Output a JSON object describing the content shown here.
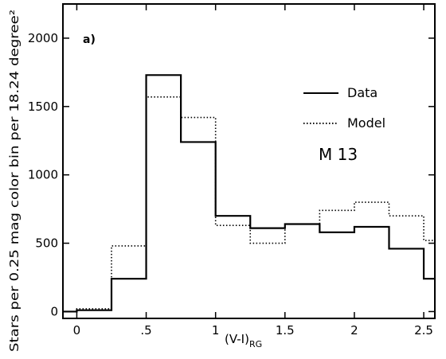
{
  "chart_data": {
    "type": "histogram",
    "panel_label": "a)",
    "xlabel": "(V-I)",
    "xlabel_subscript": "RG",
    "ylabel": "Stars per 0.25 mag color bin per 18.24 degree²",
    "xlim": [
      -0.1,
      2.58
    ],
    "ylim": [
      -50,
      2250
    ],
    "xticks": [
      0,
      0.5,
      1,
      1.5,
      2,
      2.5
    ],
    "xtick_labels": [
      "0",
      ".5",
      "1",
      "1.5",
      "2",
      "2.5"
    ],
    "yticks": [
      0,
      500,
      1000,
      1500,
      2000
    ],
    "ytick_labels": [
      "0",
      "500",
      "1000",
      "1500",
      "2000"
    ],
    "bin_edges": [
      -0.1,
      0,
      0.25,
      0.5,
      0.75,
      1,
      1.25,
      1.5,
      1.75,
      2,
      2.25,
      2.5,
      2.58
    ],
    "series": [
      {
        "name": "Data",
        "style": "solid",
        "values": [
          0,
          10,
          240,
          1730,
          1240,
          700,
          610,
          640,
          580,
          620,
          460,
          240
        ]
      },
      {
        "name": "Model",
        "style": "dotted",
        "values": [
          0,
          20,
          480,
          1570,
          1420,
          630,
          500,
          640,
          740,
          800,
          700,
          520
        ]
      }
    ],
    "legend_position": "top-right",
    "annotation": "M 13",
    "grid": false
  }
}
